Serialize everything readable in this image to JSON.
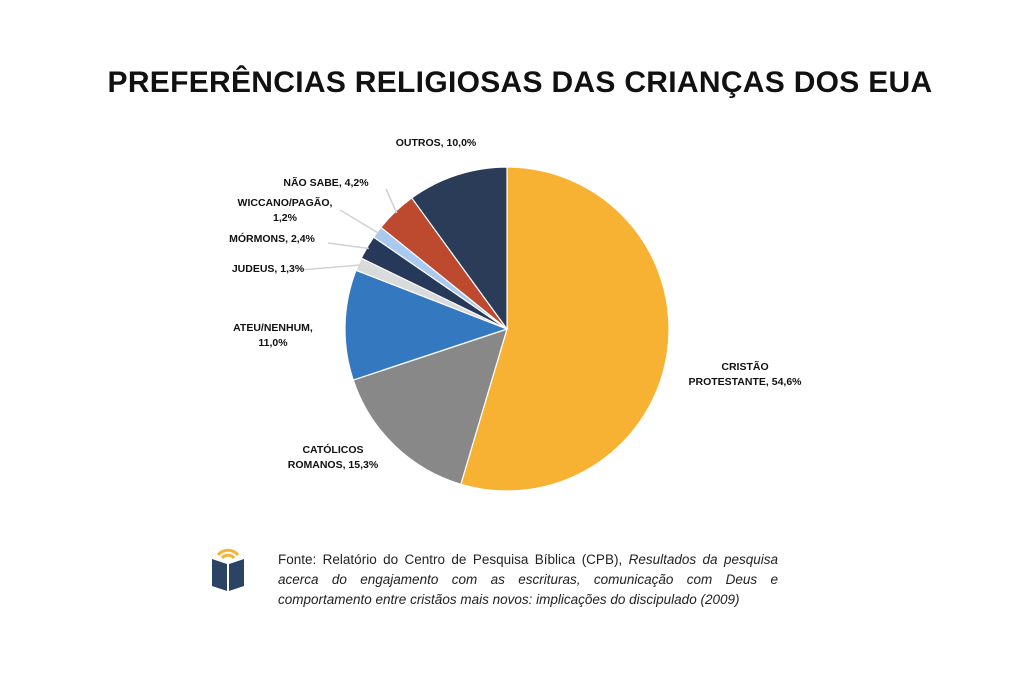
{
  "title": "PREFERÊNCIAS RELIGIOSAS DAS CRIANÇAS DOS EUA",
  "chart_data": {
    "type": "pie",
    "title": "PREFERÊNCIAS RELIGIOSAS DAS CRIANÇAS DOS EUA",
    "slices": [
      {
        "label_lines": [
          "CRISTÃO",
          "PROTESTANTE, 54,6%"
        ],
        "value": 54.6,
        "color": "#F7B234"
      },
      {
        "label_lines": [
          "CATÓLICOS",
          "ROMANOS, 15,3%"
        ],
        "value": 15.3,
        "color": "#888889"
      },
      {
        "label_lines": [
          "ATEU/NENHUM,",
          "11,0%"
        ],
        "value": 11.0,
        "color": "#3478C0"
      },
      {
        "label_lines": [
          "JUDEUS, 1,3%"
        ],
        "value": 1.3,
        "color": "#D9DADC"
      },
      {
        "label_lines": [
          "MÓRMONS, 2,4%"
        ],
        "value": 2.4,
        "color": "#27395A"
      },
      {
        "label_lines": [
          "WICCANO/PAGÃO,",
          "1,2%"
        ],
        "value": 1.2,
        "color": "#A9C9EE"
      },
      {
        "label_lines": [
          "NÃO SABE, 4,2%"
        ],
        "value": 4.2,
        "color": "#BD4A2F"
      },
      {
        "label_lines": [
          "OUTROS, 10,0%"
        ],
        "value": 10.0,
        "color": "#2B3C58"
      }
    ]
  },
  "source": {
    "prefix": "Fonte: Relatório do Centro de Pesquisa Bíblica (CPB), ",
    "italic": "Resultados da pesquisa acerca do engajamento com as escrituras, comunicação com Deus e comportamento entre cristãos mais novos: implicações do discipulado (2009)"
  },
  "logo_icon": "book-wifi-icon",
  "logo_colors": {
    "book": "#2B4466",
    "arcs": "#F7B234"
  }
}
